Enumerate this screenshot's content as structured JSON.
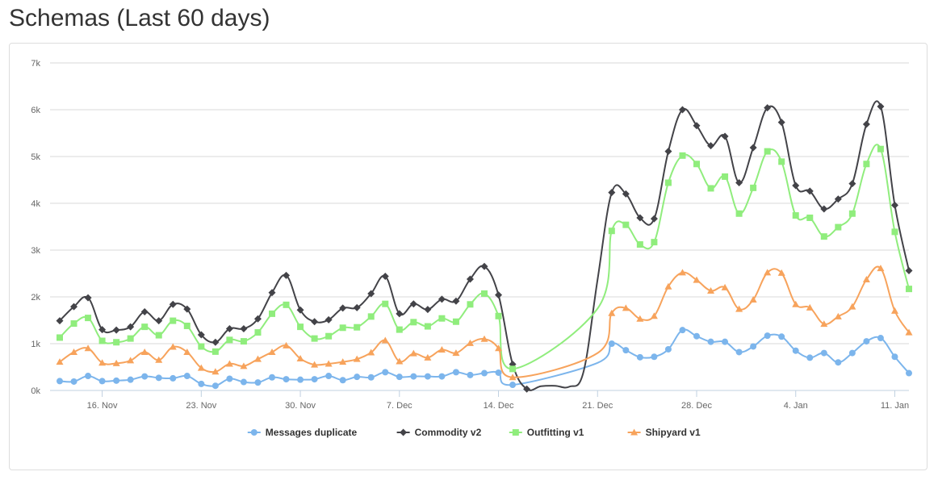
{
  "page": {
    "title": "Schemas (Last 60 days)"
  },
  "chart_data": {
    "type": "line",
    "title": "",
    "xlabel": "",
    "ylabel": "",
    "x_start": "2014-11-13",
    "x_tick_labels": [
      "16. Nov",
      "23. Nov",
      "30. Nov",
      "7. Dec",
      "14. Dec",
      "21. Dec",
      "28. Dec",
      "4. Jan",
      "11. Jan"
    ],
    "y_tick_labels": [
      "0k",
      "1k",
      "2k",
      "3k",
      "4k",
      "5k",
      "6k",
      "7k"
    ],
    "ylim": [
      0,
      7000
    ],
    "grid": true,
    "legend_position": "bottom",
    "gaps": [
      [
        34,
        38
      ]
    ],
    "series": [
      {
        "name": "Messages duplicate",
        "color": "#7cb5ec",
        "marker": "circle",
        "values": [
          200,
          190,
          310,
          200,
          210,
          230,
          300,
          270,
          260,
          310,
          140,
          100,
          250,
          180,
          170,
          280,
          240,
          230,
          240,
          310,
          220,
          290,
          280,
          390,
          290,
          300,
          300,
          300,
          390,
          330,
          370,
          380,
          120,
          null,
          null,
          null,
          null,
          null,
          590,
          1000,
          860,
          710,
          720,
          880,
          1290,
          1160,
          1040,
          1040,
          820,
          940,
          1170,
          1150,
          850,
          700,
          800,
          600,
          800,
          1050,
          1120,
          720,
          370
        ]
      },
      {
        "name": "Commodity v2",
        "color": "#434348",
        "marker": "diamond",
        "values": [
          1490,
          1790,
          1980,
          1300,
          1290,
          1360,
          1680,
          1490,
          1840,
          1740,
          1190,
          1030,
          1320,
          1320,
          1530,
          2090,
          2460,
          1720,
          1470,
          1510,
          1760,
          1770,
          2070,
          2440,
          1640,
          1850,
          1730,
          1950,
          1910,
          2380,
          2650,
          2040,
          560,
          30,
          90,
          100,
          80,
          390,
          2370,
          4230,
          4200,
          3690,
          3670,
          5110,
          6000,
          5660,
          5230,
          5430,
          4440,
          5190,
          6040,
          5730,
          4380,
          4260,
          3880,
          4090,
          4420,
          5690,
          6070,
          3960,
          2560
        ]
      },
      {
        "name": "Outfitting v1",
        "color": "#90ed7d",
        "marker": "square",
        "values": [
          1130,
          1430,
          1550,
          1060,
          1030,
          1110,
          1360,
          1180,
          1490,
          1380,
          940,
          830,
          1080,
          1050,
          1240,
          1640,
          1830,
          1360,
          1110,
          1160,
          1340,
          1350,
          1580,
          1850,
          1300,
          1460,
          1370,
          1540,
          1470,
          1840,
          2070,
          1590,
          460,
          null,
          null,
          null,
          null,
          null,
          1750,
          3410,
          3540,
          3120,
          3170,
          4440,
          5020,
          4840,
          4320,
          4570,
          3780,
          4330,
          5110,
          4890,
          3740,
          3690,
          3290,
          3490,
          3780,
          4840,
          5160,
          3390,
          2170
        ]
      },
      {
        "name": "Shipyard v1",
        "color": "#f7a35c",
        "marker": "triangle",
        "values": [
          610,
          820,
          900,
          590,
          580,
          640,
          820,
          650,
          930,
          820,
          480,
          400,
          570,
          520,
          670,
          820,
          960,
          680,
          550,
          570,
          610,
          670,
          810,
          1070,
          620,
          790,
          700,
          870,
          800,
          1010,
          1100,
          900,
          280,
          null,
          null,
          null,
          null,
          null,
          800,
          1650,
          1760,
          1530,
          1590,
          2220,
          2520,
          2360,
          2130,
          2200,
          1740,
          1940,
          2520,
          2510,
          1840,
          1770,
          1420,
          1580,
          1790,
          2370,
          2610,
          1700,
          1240
        ]
      }
    ]
  }
}
